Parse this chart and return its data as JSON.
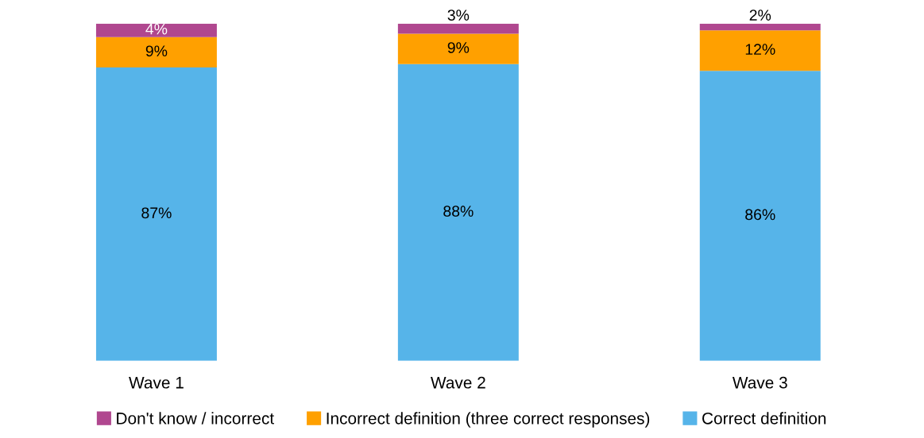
{
  "chart_data": {
    "type": "bar",
    "stacked": true,
    "categories": [
      "Wave 1",
      "Wave 2",
      "Wave 3"
    ],
    "series": [
      {
        "name": "Correct definition",
        "color": "#56b4e9",
        "values": [
          87,
          88,
          86
        ],
        "value_labels": [
          "87%",
          "88%",
          "86%"
        ]
      },
      {
        "name": "Incorrect definition (three correct responses)",
        "color": "#ffa000",
        "values": [
          9,
          9,
          12
        ],
        "value_labels": [
          "9%",
          "9%",
          "12%"
        ]
      },
      {
        "name": "Don't know / incorrect",
        "color": "#b0478f",
        "values": [
          4,
          3,
          2
        ],
        "value_labels": [
          "4%",
          "3%",
          "2%"
        ]
      }
    ],
    "tick_labels": "x",
    "legend": "bottom",
    "grid": false
  }
}
